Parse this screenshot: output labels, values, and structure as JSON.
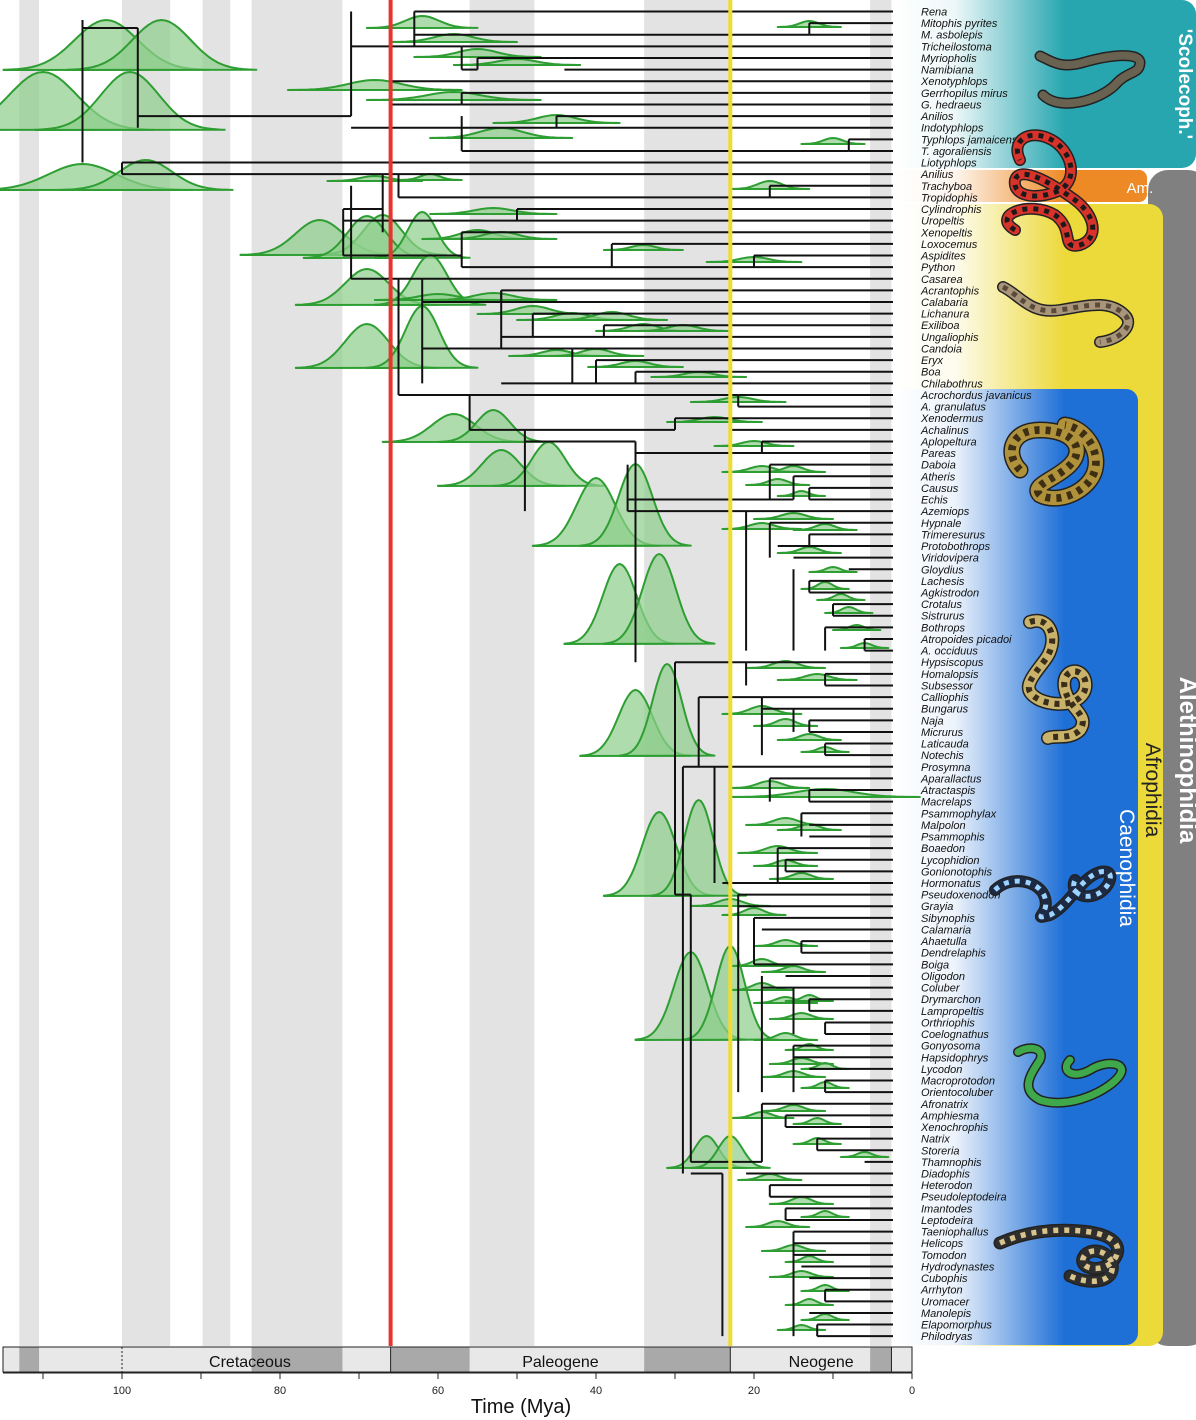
{
  "taxa": [
    "Rena",
    "Mitophis pyrites",
    "M. asbolepis",
    "Tricheilostoma",
    "Myriopholis",
    "Namibiana",
    "Xenotyphlops",
    "Gerrhopilus mirus",
    "G. hedraeus",
    "Anilios",
    "Indotyphlops",
    "Typhlops jamaicensis",
    "T. agoraliensis",
    "Liotyphlops",
    "Anilius",
    "Trachyboa",
    "Tropidophis",
    "Cylindrophis",
    "Uropeltis",
    "Xenopeltis",
    "Loxocemus",
    "Aspidites",
    "Python",
    "Casarea",
    "Acrantophis",
    "Calabaria",
    "Lichanura",
    "Exiliboa",
    "Ungaliophis",
    "Candoia",
    "Eryx",
    "Boa",
    "Chilabothrus",
    "Acrochordus javanicus",
    "A. granulatus",
    "Xenodermus",
    "Achalinus",
    "Aplopeltura",
    "Pareas",
    "Daboia",
    "Atheris",
    "Causus",
    "Echis",
    "Azemiops",
    "Hypnale",
    "Trimeresurus",
    "Protobothrops",
    "Viridovipera",
    "Gloydius",
    "Lachesis",
    "Agkistrodon",
    "Crotalus",
    "Sistrurus",
    "Bothrops",
    "Atropoides picadoi",
    "A. occiduus",
    "Hypsiscopus",
    "Homalopsis",
    "Subsessor",
    "Calliophis",
    "Bungarus",
    "Naja",
    "Micrurus",
    "Laticauda",
    "Notechis",
    "Prosymna",
    "Aparallactus",
    "Atractaspis",
    "Macrelaps",
    "Psammophylax",
    "Malpolon",
    "Psammophis",
    "Boaedon",
    "Lycophidion",
    "Gonionotophis",
    "Hormonatus",
    "Pseudoxenodon",
    "Grayia",
    "Sibynophis",
    "Calamaria",
    "Ahaetulla",
    "Dendrelaphis",
    "Boiga",
    "Oligodon",
    "Coluber",
    "Drymarchon",
    "Lampropeltis",
    "Orthriophis",
    "Coelognathus",
    "Gonyosoma",
    "Hapsidophrys",
    "Lycodon",
    "Macroprotodon",
    "Orientocoluber",
    "Afronatrix",
    "Amphiesma",
    "Xenochrophis",
    "Natrix",
    "Storeria",
    "Thamnophis",
    "Diadophis",
    "Heterodon",
    "Pseudoleptodeira",
    "Imantodes",
    "Leptodeira",
    "Taeniophallus",
    "Helicops",
    "Tomodon",
    "Hydrodynastes",
    "Cubophis",
    "Arrhyton",
    "Uromacer",
    "Manolepis",
    "Elapomorphus",
    "Philodryas"
  ],
  "axis": {
    "title": "Time (Mya)",
    "ticks": [
      "100",
      "80",
      "60",
      "40",
      "20",
      "0"
    ],
    "periods": [
      "Cretaceous",
      "Paleogene",
      "Neogene"
    ]
  },
  "clades": {
    "scolecophidia": "'Scolecoph.'",
    "amerophidia": "Am.",
    "alethinophidia": "Alethinophidia",
    "afrophidia": "Afrophidia",
    "caenophidia": "Caenophidia"
  },
  "events": {
    "kpg_mya": 66,
    "eo_mya": 23
  },
  "colors": {
    "kpg_line": "#e8342f",
    "oligo_line": "#f0dc30",
    "density_fill": "#8fcf8c",
    "density_stroke": "#2e9e33",
    "stripe": "#e3e3e3",
    "scoleco_band": "#27a6b0",
    "amero_band": "#ee8a25",
    "aletho_band": "#808080",
    "afro_band": "#ecd93a",
    "caeno_band": "#1e6fd6"
  },
  "icons": [
    "blind-snake-icon",
    "coral-snake-icon",
    "boa-icon",
    "viper-icon",
    "rattlesnake-icon",
    "krait-icon",
    "green-snake-icon",
    "water-snake-icon"
  ]
}
